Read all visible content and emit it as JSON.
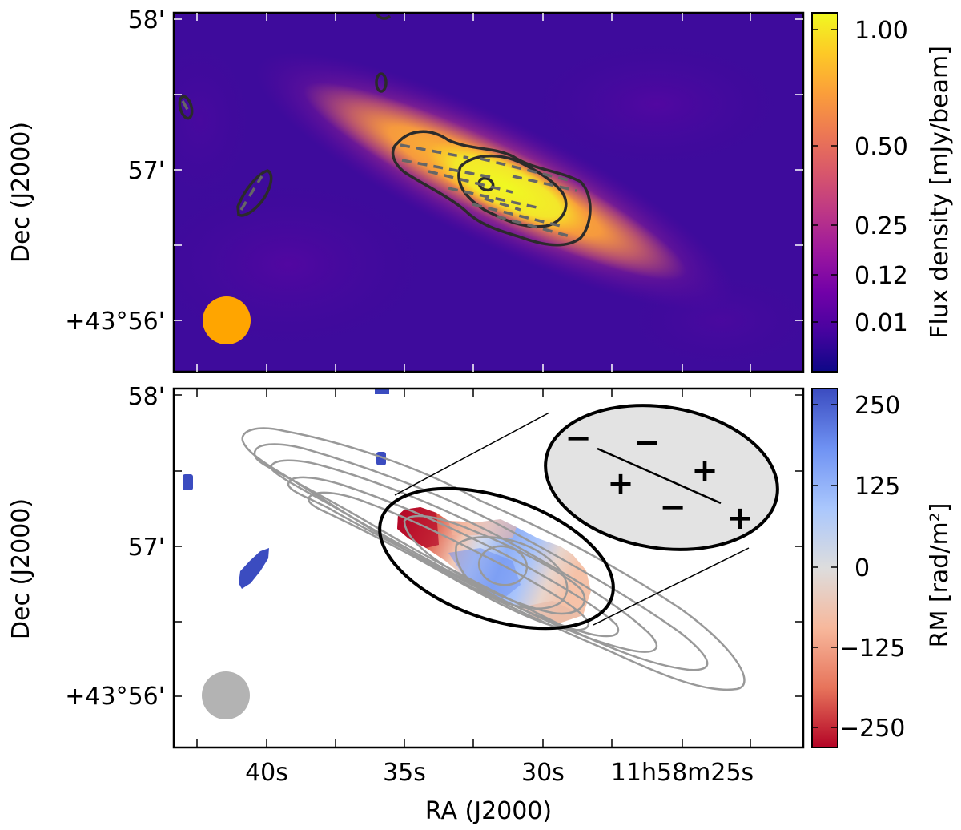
{
  "chart_data": [
    {
      "type": "heatmap",
      "panel": "top",
      "description_colormap": "plasma",
      "ylabel": "Dec (J2000)",
      "y_ticks": [
        "58'",
        "57'",
        "+43°56'"
      ],
      "colorbar": {
        "label": "Flux density [mJy/beam]",
        "ticks": [
          "1.00",
          "0.50",
          "0.25",
          "0.12",
          "0.01"
        ],
        "tick_values": [
          1.0,
          0.5,
          0.25,
          0.12,
          0.01
        ],
        "cmap_colors": [
          "#0d0887",
          "#46039f",
          "#7201a8",
          "#9c179e",
          "#bd3786",
          "#d8576b",
          "#ed7953",
          "#fb9f3a",
          "#fdca26",
          "#f0f921"
        ]
      },
      "contours": {
        "solid_color": "#2b2b2b",
        "dashed_color": "#666666"
      },
      "beam_color": "#ffa500"
    },
    {
      "type": "heatmap",
      "panel": "bottom",
      "description_colormap": "coolwarm_r",
      "xlabel": "RA (J2000)",
      "ylabel": "Dec (J2000)",
      "x_ticks": [
        "40s",
        "35s",
        "30s",
        "11h58m25s"
      ],
      "y_ticks": [
        "58'",
        "57'",
        "+43°56'"
      ],
      "colorbar": {
        "label": "RM [rad/m²]",
        "ticks": [
          "250",
          "125",
          "0",
          "−125",
          "−250"
        ],
        "tick_values": [
          250,
          125,
          0,
          -125,
          -250
        ],
        "cmap_colors": [
          "#b40426",
          "#e7745b",
          "#f7b89c",
          "#dddddd",
          "#aac7fd",
          "#6f92f3",
          "#3b4cc0"
        ]
      },
      "inset": {
        "signs": [
          "−",
          "−",
          "+",
          "+",
          "−",
          "+"
        ]
      },
      "contours": {
        "color": "#999999"
      },
      "beam_color": "#b3b3b3"
    }
  ]
}
